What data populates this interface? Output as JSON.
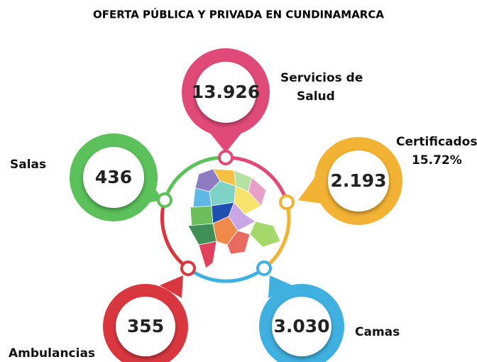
{
  "title": "OFERTA PÚBLICA Y PRIVADA EN CUNDINAMARCA",
  "nodes": [
    {
      "value": "13.926",
      "lines": [
        "Servicios de",
        "Salud"
      ]
    },
    {
      "value": "2.193",
      "lines": [
        "Certificados",
        "15.72%"
      ]
    },
    {
      "value": "3.030",
      "lines": [
        "Camas"
      ]
    },
    {
      "value": "355",
      "lines": [
        "Ambulancias"
      ]
    },
    {
      "value": "436",
      "lines": [
        "Salas"
      ]
    }
  ]
}
